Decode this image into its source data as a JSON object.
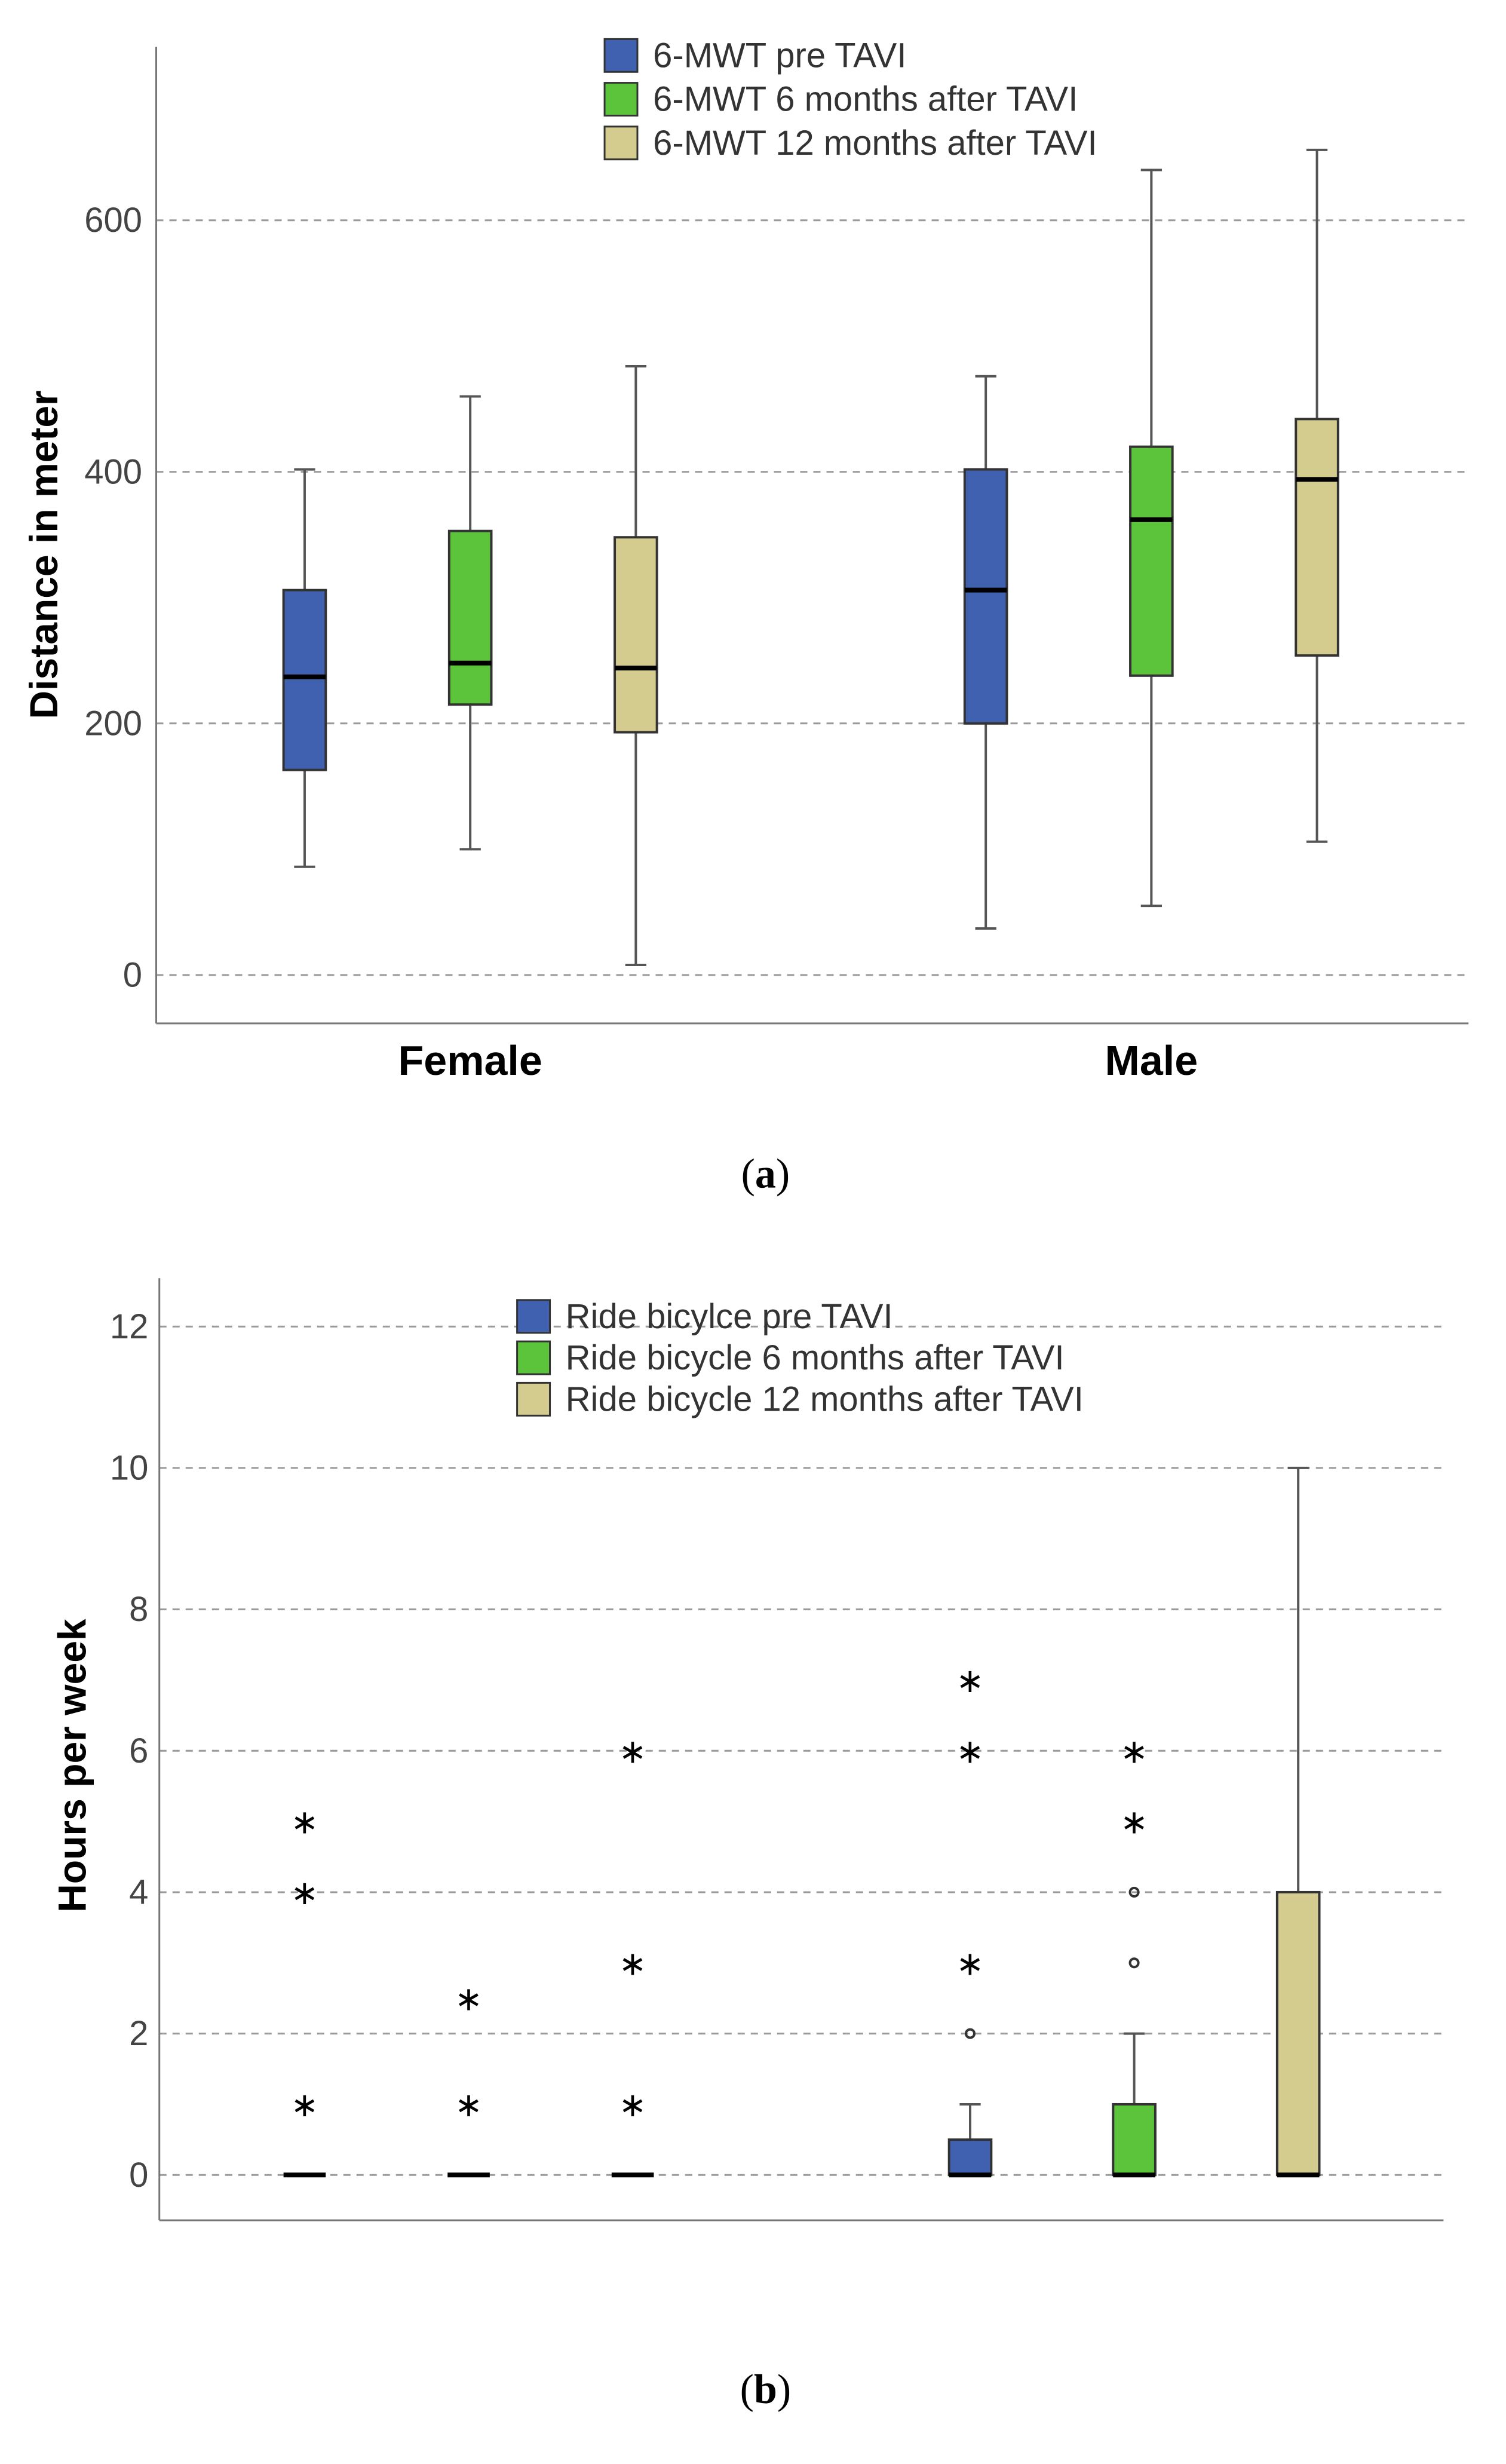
{
  "colors": {
    "pre": "#4060b0",
    "six": "#5cc43a",
    "twelve": "#d4cc8e"
  },
  "chart_data": [
    {
      "type": "box",
      "panel_caption": "a",
      "ylabel": "Distance in meter",
      "ylim": [
        -40,
        740
      ],
      "yticks": [
        0,
        200,
        400,
        600
      ],
      "grid": true,
      "legend_position": "top-center",
      "categories": [
        "Female",
        "Male"
      ],
      "series": [
        {
          "name": "6-MWT pre TAVI",
          "color_key": "pre",
          "boxes": [
            {
              "category": "Female",
              "min": 86,
              "q1": 163,
              "median": 237,
              "q3": 306,
              "max": 402,
              "outliers": []
            },
            {
              "category": "Male",
              "min": 37,
              "q1": 200,
              "median": 306,
              "q3": 402,
              "max": 476,
              "outliers": []
            }
          ]
        },
        {
          "name": "6-MWT 6 months after TAVI",
          "color_key": "six",
          "boxes": [
            {
              "category": "Female",
              "min": 100,
              "q1": 215,
              "median": 248,
              "q3": 353,
              "max": 460,
              "outliers": []
            },
            {
              "category": "Male",
              "min": 55,
              "q1": 238,
              "median": 362,
              "q3": 420,
              "max": 640,
              "outliers": []
            }
          ]
        },
        {
          "name": "6-MWT 12 months after TAVI",
          "color_key": "twelve",
          "boxes": [
            {
              "category": "Female",
              "min": 8,
              "q1": 193,
              "median": 244,
              "q3": 348,
              "max": 484,
              "outliers": []
            },
            {
              "category": "Male",
              "min": 106,
              "q1": 254,
              "median": 394,
              "q3": 442,
              "max": 656,
              "outliers": []
            }
          ]
        }
      ]
    },
    {
      "type": "box",
      "panel_caption": "b",
      "ylabel": "Hours per week",
      "ylim": [
        -0.65,
        12.65
      ],
      "yticks": [
        0,
        2,
        4,
        6,
        8,
        10,
        12
      ],
      "grid": true,
      "legend_position": "top-center",
      "categories": [
        "Female",
        "Male"
      ],
      "series": [
        {
          "name": "Ride bicylce pre TAVI",
          "color_key": "pre",
          "boxes": [
            {
              "category": "Female",
              "min": 0,
              "q1": 0,
              "median": 0,
              "q3": 0,
              "max": 0,
              "outliers": [
                {
                  "value": 1,
                  "marker": "*"
                },
                {
                  "value": 4,
                  "marker": "*"
                },
                {
                  "value": 5,
                  "marker": "*"
                }
              ]
            },
            {
              "category": "Male",
              "min": 0,
              "q1": 0,
              "median": 0,
              "q3": 0.5,
              "max": 1,
              "outliers": [
                {
                  "value": 2,
                  "marker": "o"
                },
                {
                  "value": 3,
                  "marker": "*"
                },
                {
                  "value": 6,
                  "marker": "*"
                },
                {
                  "value": 7,
                  "marker": "*"
                }
              ]
            }
          ]
        },
        {
          "name": "Ride bicycle 6 months after TAVI",
          "color_key": "six",
          "boxes": [
            {
              "category": "Female",
              "min": 0,
              "q1": 0,
              "median": 0,
              "q3": 0,
              "max": 0,
              "outliers": [
                {
                  "value": 1,
                  "marker": "*"
                },
                {
                  "value": 2.5,
                  "marker": "*"
                }
              ]
            },
            {
              "category": "Male",
              "min": 0,
              "q1": 0,
              "median": 0,
              "q3": 1,
              "max": 2,
              "outliers": [
                {
                  "value": 3,
                  "marker": "o"
                },
                {
                  "value": 4,
                  "marker": "o"
                },
                {
                  "value": 5,
                  "marker": "*"
                },
                {
                  "value": 6,
                  "marker": "*"
                }
              ]
            }
          ]
        },
        {
          "name": "Ride bicycle 12 months after TAVI",
          "color_key": "twelve",
          "boxes": [
            {
              "category": "Female",
              "min": 0,
              "q1": 0,
              "median": 0,
              "q3": 0,
              "max": 0,
              "outliers": [
                {
                  "value": 1,
                  "marker": "*"
                },
                {
                  "value": 3,
                  "marker": "*"
                },
                {
                  "value": 6,
                  "marker": "*"
                }
              ]
            },
            {
              "category": "Male",
              "min": 0,
              "q1": 0,
              "median": 0,
              "q3": 4,
              "max": 10,
              "outliers": []
            }
          ]
        }
      ]
    }
  ]
}
